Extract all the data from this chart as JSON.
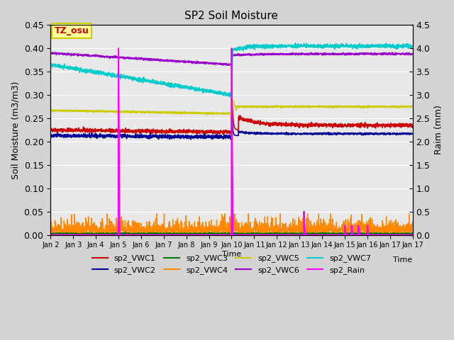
{
  "title": "SP2 Soil Moisture",
  "xlabel": "Time",
  "ylabel_left": "Soil Moisture (m3/m3)",
  "ylabel_right": "Raim (mm)",
  "ylim_left": [
    0.0,
    0.45
  ],
  "ylim_right": [
    0.0,
    4.5
  ],
  "background_color": "#d3d3d3",
  "plot_bg_color": "#e8e8e8",
  "annotation_text": "TZ_osu",
  "annotation_bg": "#ffff99",
  "annotation_border": "#cccc00",
  "x_tick_labels": [
    "Jan 2",
    "Jan 3",
    "Jan 4",
    "Jan 5",
    "Jan 6",
    "Jan 7",
    "Jan 8",
    "Jan 9",
    "Jan 10",
    "Jan 11",
    "Jan 12",
    "Jan 13",
    "Jan 14",
    "Jan 15",
    "Jan 16",
    "Jan 17"
  ],
  "n_days": 16,
  "colors": {
    "sp2_VWC1": "#cc0000",
    "sp2_VWC2": "#000099",
    "sp2_VWC3": "#007700",
    "sp2_VWC4": "#ff8800",
    "sp2_VWC5": "#cccc00",
    "sp2_VWC6": "#9900cc",
    "sp2_VWC7": "#00cccc",
    "sp2_Rain": "#ff00ff"
  },
  "legend_labels": [
    "sp2_VWC1",
    "sp2_VWC2",
    "sp2_VWC3",
    "sp2_VWC4",
    "sp2_VWC5",
    "sp2_VWC6",
    "sp2_VWC7",
    "sp2_Rain"
  ]
}
